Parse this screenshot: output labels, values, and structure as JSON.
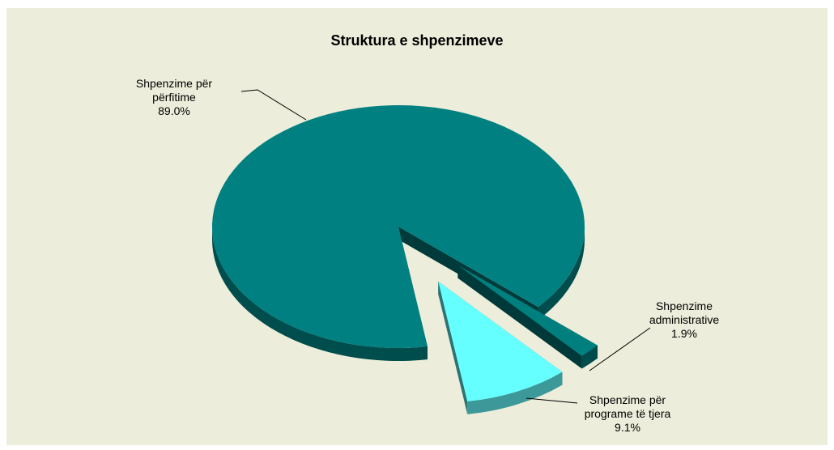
{
  "chart_data": {
    "type": "pie",
    "title": "Struktura e shpenzimeve",
    "categories": [
      "Shpenzime për përfitime",
      "Shpenzime administrative",
      "Shpenzime për programe të tjera"
    ],
    "values": [
      89.0,
      1.9,
      9.1
    ],
    "value_labels": [
      "89.0%",
      "1.9%",
      "9.1%"
    ],
    "colors": [
      "#008080",
      "#007f7f",
      "#66ffff"
    ],
    "three_d": true
  }
}
